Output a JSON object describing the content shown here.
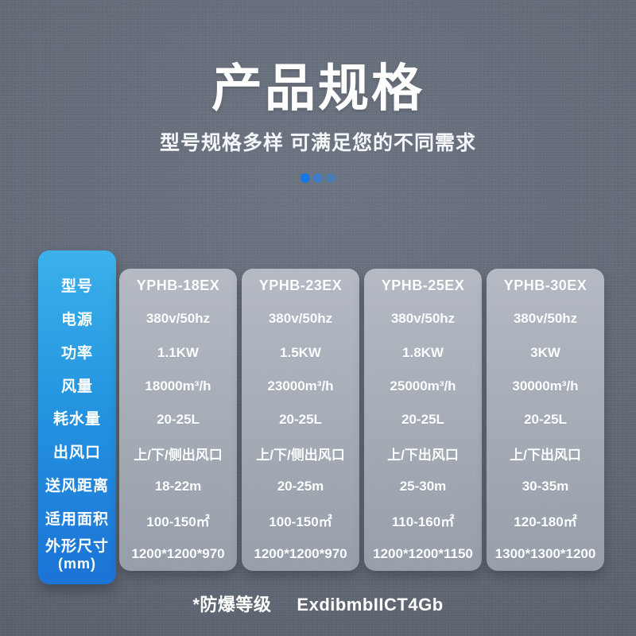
{
  "header": {
    "title": "产品规格",
    "subtitle": "型号规格多样 可满足您的不同需求"
  },
  "colors": {
    "accent_blue_top": "#3cb1ea",
    "accent_blue_bottom": "#1b73d6",
    "dot1": "#1677e8",
    "dot2": "#3f7cca",
    "dot3": "#4a7cb2"
  },
  "table": {
    "rows": [
      {
        "label": "型号"
      },
      {
        "label": "电源"
      },
      {
        "label": "功率"
      },
      {
        "label": "风量"
      },
      {
        "label": "耗水量"
      },
      {
        "label": "出风口"
      },
      {
        "label": "送风距离"
      },
      {
        "label": "适用面积"
      },
      {
        "label": "外形尺寸",
        "label2": "(mm)"
      }
    ],
    "columns": [
      {
        "model": "YPHB-18EX",
        "values": [
          "380v/50hz",
          "1.1KW",
          "18000m³/h",
          "20-25L",
          "上/下/侧出风口",
          "18-22m",
          "100-150㎡",
          "1200*1200*970"
        ]
      },
      {
        "model": "YPHB-23EX",
        "values": [
          "380v/50hz",
          "1.5KW",
          "23000m³/h",
          "20-25L",
          "上/下/侧出风口",
          "20-25m",
          "100-150㎡",
          "1200*1200*970"
        ]
      },
      {
        "model": "YPHB-25EX",
        "values": [
          "380v/50hz",
          "1.8KW",
          "25000m³/h",
          "20-25L",
          "上/下出风口",
          "25-30m",
          "110-160㎡",
          "1200*1200*1150"
        ]
      },
      {
        "model": "YPHB-30EX",
        "values": [
          "380v/50hz",
          "3KW",
          "30000m³/h",
          "20-25L",
          "上/下出风口",
          "30-35m",
          "120-180㎡",
          "1300*1300*1200"
        ]
      }
    ]
  },
  "footnote": {
    "label": "*防爆等级",
    "value": "ExdibmbIICT4Gb"
  }
}
